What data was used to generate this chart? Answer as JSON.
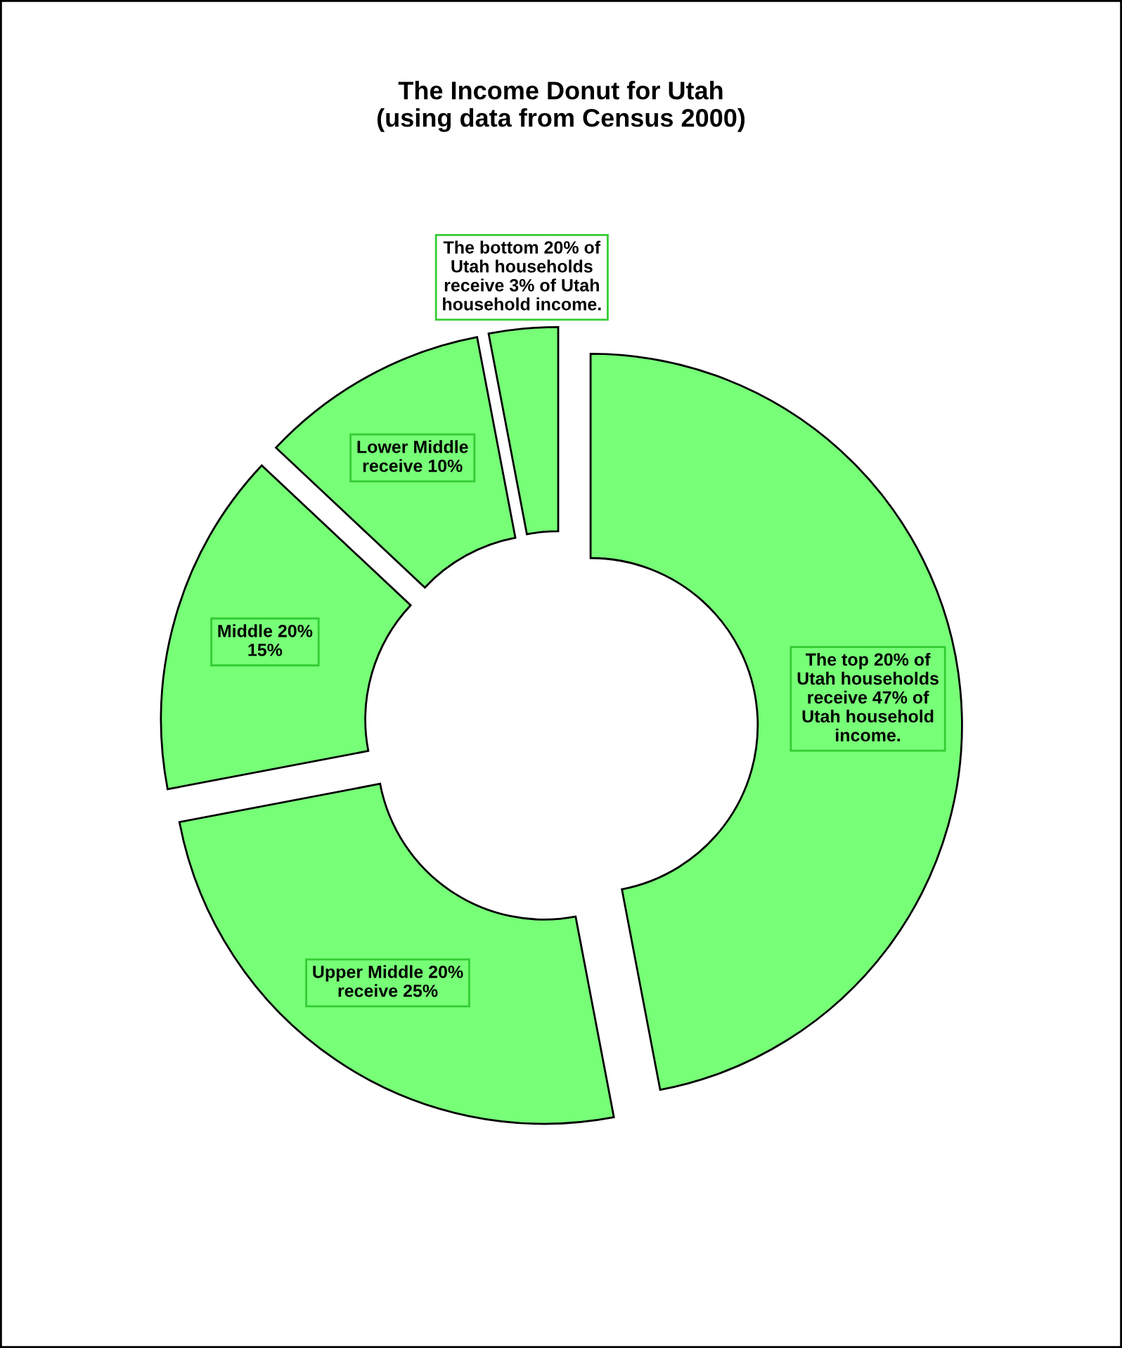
{
  "chart_data": {
    "type": "donut",
    "title": "The Income Donut for Utah\n(using data from Census 2000)",
    "categories": [
      "The top 20% of\nUtah households\nreceive 47% of\nUtah household\nincome.",
      "Upper Middle 20%\nreceive 25%",
      "Middle 20%\n15%",
      "Lower Middle\nreceive 10%",
      "The bottom 20% of\nUtah households\nreceive 3% of Utah\nhousehold income."
    ],
    "values": [
      47,
      25,
      15,
      10,
      3
    ],
    "colors": [
      "#77ff77",
      "#77ff77",
      "#77ff77",
      "#77ff77",
      "#77ff77"
    ]
  }
}
